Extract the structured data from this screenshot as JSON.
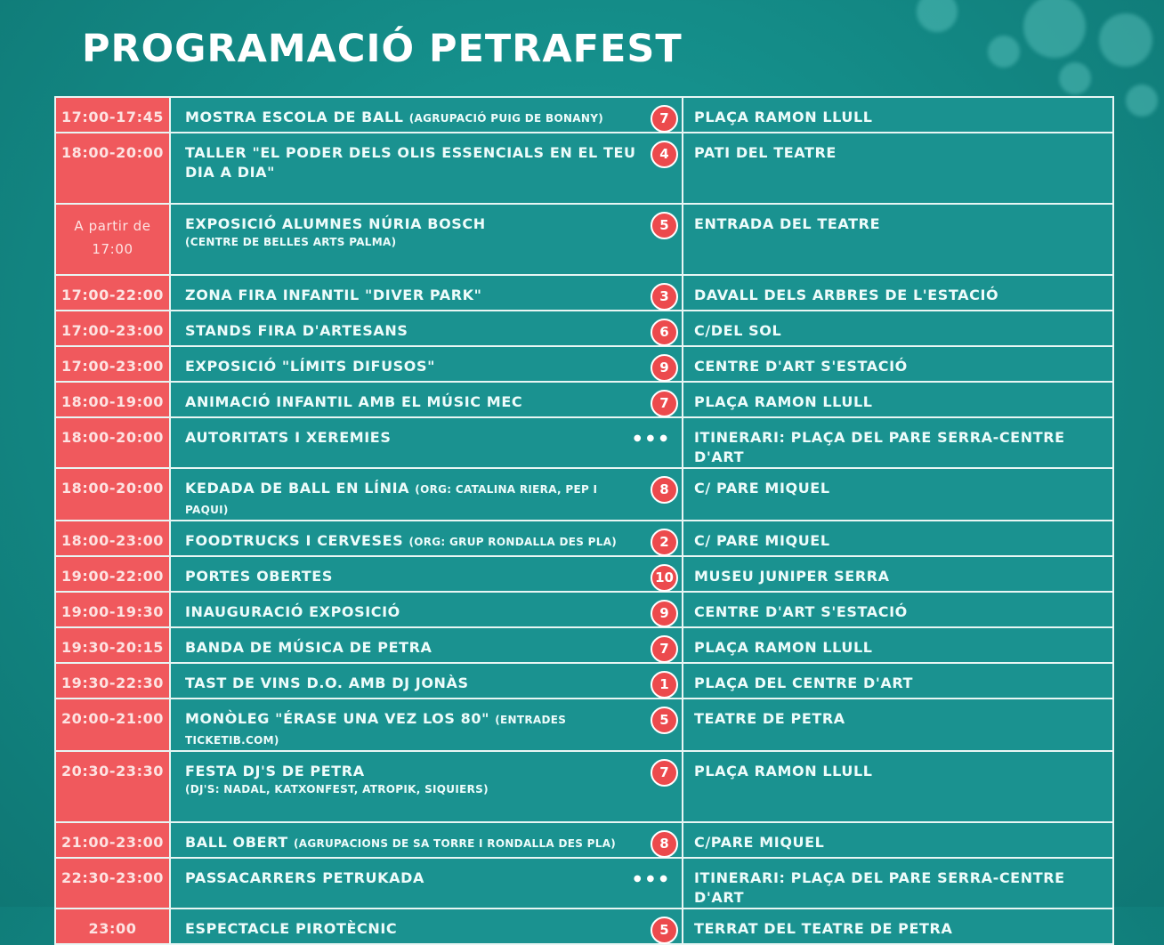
{
  "title": "PROGRAMACIÓ PETRAFEST",
  "rows": [
    {
      "time": "17:00-17:45",
      "activity": "MOSTRA ESCOLA DE BALL",
      "note": "(AGRUPACIÓ PUIG DE BONANY)",
      "sub": "",
      "badge": "7",
      "place": "PLAÇA RAMON LLULL"
    },
    {
      "time": "18:00-20:00",
      "activity": "TALLER \"EL PODER DELS OLIS ESSENCIALS EN EL TEU DIA A DIA\"",
      "note": "",
      "sub": "",
      "badge": "4",
      "place": "PATI DEL TEATRE"
    },
    {
      "time": "A partir de 17:00",
      "activity": "EXPOSICIÓ ALUMNES NÚRIA BOSCH",
      "note": "",
      "sub": "(CENTRE DE BELLES ARTS PALMA)",
      "badge": "5",
      "place": "ENTRADA DEL TEATRE"
    },
    {
      "time": "17:00-22:00",
      "activity": "ZONA FIRA INFANTIL \"DIVER PARK\"",
      "note": "",
      "sub": "",
      "badge": "3",
      "place": "DAVALL DELS ARBRES DE L'ESTACIÓ"
    },
    {
      "time": "17:00-23:00",
      "activity": "STANDS FIRA D'ARTESANS",
      "note": "",
      "sub": "",
      "badge": "6",
      "place": "C/DEL SOL"
    },
    {
      "time": "17:00-23:00",
      "activity": "EXPOSICIÓ \"LÍMITS DIFUSOS\"",
      "note": "",
      "sub": "",
      "badge": "9",
      "place": "CENTRE D'ART S'ESTACIÓ"
    },
    {
      "time": "18:00-19:00",
      "activity": "ANIMACIÓ INFANTIL AMB EL MÚSIC MEC",
      "note": "",
      "sub": "",
      "badge": "7",
      "place": "PLAÇA RAMON LLULL"
    },
    {
      "time": "18:00-20:00",
      "activity": "AUTORITATS I XEREMIES",
      "note": "",
      "sub": "",
      "badge": "",
      "place": "ITINERARI: PLAÇA DEL PARE SERRA-CENTRE D'ART"
    },
    {
      "time": "18:00-20:00",
      "activity": "KEDADA DE BALL EN LÍNIA",
      "note": "(ORG: CATALINA RIERA, PEP I PAQUI)",
      "sub": "",
      "badge": "8",
      "place": "C/ PARE MIQUEL"
    },
    {
      "time": "18:00-23:00",
      "activity": "FOODTRUCKS I CERVESES",
      "note": "(ORG: GRUP RONDALLA DES PLA)",
      "sub": "",
      "badge": "2",
      "place": "C/ PARE MIQUEL"
    },
    {
      "time": "19:00-22:00",
      "activity": "PORTES OBERTES",
      "note": "",
      "sub": "",
      "badge": "10",
      "place": "MUSEU JUNIPER SERRA"
    },
    {
      "time": "19:00-19:30",
      "activity": "INAUGURACIÓ EXPOSICIÓ",
      "note": "",
      "sub": "",
      "badge": "9",
      "place": "CENTRE D'ART S'ESTACIÓ"
    },
    {
      "time": "19:30-20:15",
      "activity": "BANDA DE MÚSICA DE PETRA",
      "note": "",
      "sub": "",
      "badge": "7",
      "place": "PLAÇA RAMON LLULL"
    },
    {
      "time": "19:30-22:30",
      "activity": "TAST DE VINS D.O. AMB DJ JONÀS",
      "note": "",
      "sub": "",
      "badge": "1",
      "place": "PLAÇA DEL CENTRE D'ART"
    },
    {
      "time": "20:00-21:00",
      "activity": "MONÒLEG \"ÉRASE UNA VEZ LOS 80\"",
      "note": "(ENTRADES TICKETIB.COM)",
      "sub": "",
      "badge": "5",
      "place": "TEATRE DE PETRA"
    },
    {
      "time": "20:30-23:30",
      "activity": "FESTA DJ'S DE PETRA",
      "note": "",
      "sub": "(DJ'S: NADAL, KATXONFEST, ATROPIK, SIQUIERS)",
      "badge": "7",
      "place": "PLAÇA RAMON LLULL"
    },
    {
      "time": "21:00-23:00",
      "activity": "BALL OBERT",
      "note": "(AGRUPACIONS DE SA TORRE I RONDALLA DES PLA)",
      "sub": "",
      "badge": "8",
      "place": "C/PARE MIQUEL"
    },
    {
      "time": "22:30-23:00",
      "activity": "PASSACARRERS PETRUKADA",
      "note": "",
      "sub": "",
      "badge": "",
      "place": "ITINERARI: PLAÇA DEL PARE SERRA-CENTRE D'ART"
    },
    {
      "time": "23:00",
      "activity": "ESPECTACLE PIROTÈCNIC",
      "note": "",
      "sub": "",
      "badge": "5",
      "place": "TERRAT DEL TEATRE DE PETRA"
    }
  ],
  "colors": {
    "background": "#138985",
    "time_cell": "#f0595d",
    "badge": "#ec4a4d",
    "cell": "#1a9290",
    "border": "#e8f6f4"
  },
  "icons": {
    "badge": "location-number-badge",
    "dots": "ellipsis-icon"
  }
}
